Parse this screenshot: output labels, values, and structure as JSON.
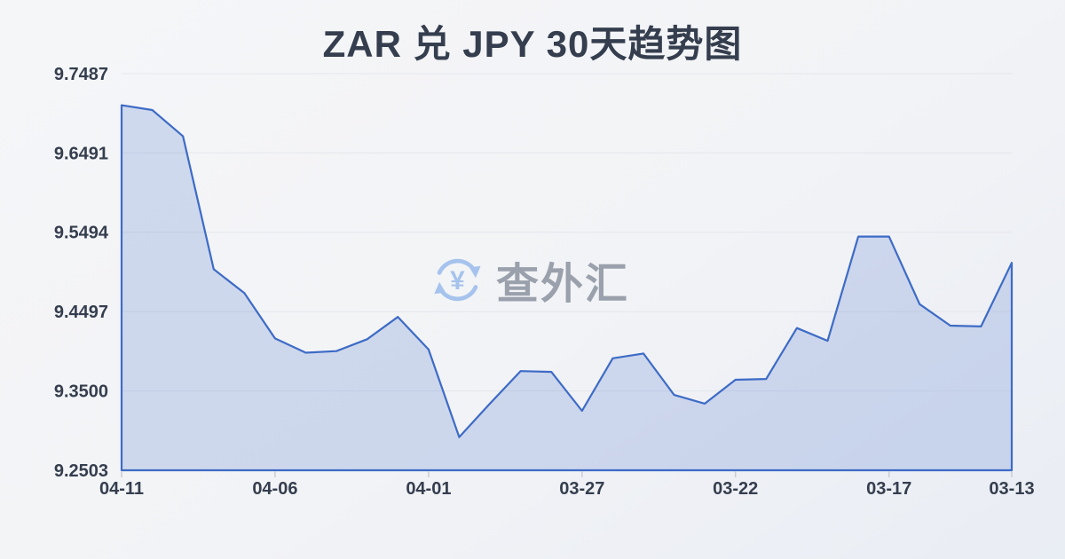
{
  "title": "ZAR 兑 JPY 30天趋势图",
  "watermark": {
    "icon": "yen-exchange-icon",
    "text": "查外汇"
  },
  "colors": {
    "background": "#f2f4f7",
    "title_text": "#353e4e",
    "axis_text": "#353e4e",
    "line": "#3d6bc6",
    "area_fill": "rgba(61,107,198,0.20)",
    "gridline": "#e3e6ec",
    "tick": "#c9cdd5",
    "watermark_text": "#9aa1ac",
    "watermark_icon": "#a6c3ed"
  },
  "chart_data": {
    "type": "area",
    "title": "ZAR 兑 JPY 30天趋势图",
    "x": [
      "04-11",
      "04-10",
      "04-09",
      "04-08",
      "04-07",
      "04-06",
      "04-05",
      "04-04",
      "04-03",
      "04-02",
      "04-01",
      "03-31",
      "03-30",
      "03-29",
      "03-28",
      "03-27",
      "03-26",
      "03-25",
      "03-24",
      "03-23",
      "03-22",
      "03-21",
      "03-20",
      "03-19",
      "03-18",
      "03-17",
      "03-16",
      "03-15",
      "03-14",
      "03-13"
    ],
    "values": [
      9.709,
      9.703,
      9.67,
      9.503,
      9.473,
      9.416,
      9.398,
      9.4,
      9.415,
      9.443,
      9.402,
      9.292,
      9.334,
      9.375,
      9.374,
      9.325,
      9.391,
      9.397,
      9.345,
      9.334,
      9.364,
      9.365,
      9.429,
      9.413,
      9.544,
      9.544,
      9.459,
      9.432,
      9.431,
      9.511
    ],
    "y_tick_labels": [
      "9.7487",
      "9.6491",
      "9.5494",
      "9.4497",
      "9.3500",
      "9.2503"
    ],
    "y_tick_values": [
      9.7487,
      9.6491,
      9.5494,
      9.4497,
      9.35,
      9.2503
    ],
    "x_tick_labels": [
      "04-11",
      "04-06",
      "04-01",
      "03-27",
      "03-22",
      "03-17",
      "03-13"
    ],
    "x_tick_indices": [
      0,
      5,
      10,
      15,
      20,
      25,
      29
    ],
    "ylim": [
      9.2503,
      9.7487
    ],
    "xlabel": "",
    "ylabel": "",
    "grid": true,
    "legend_position": "none"
  }
}
